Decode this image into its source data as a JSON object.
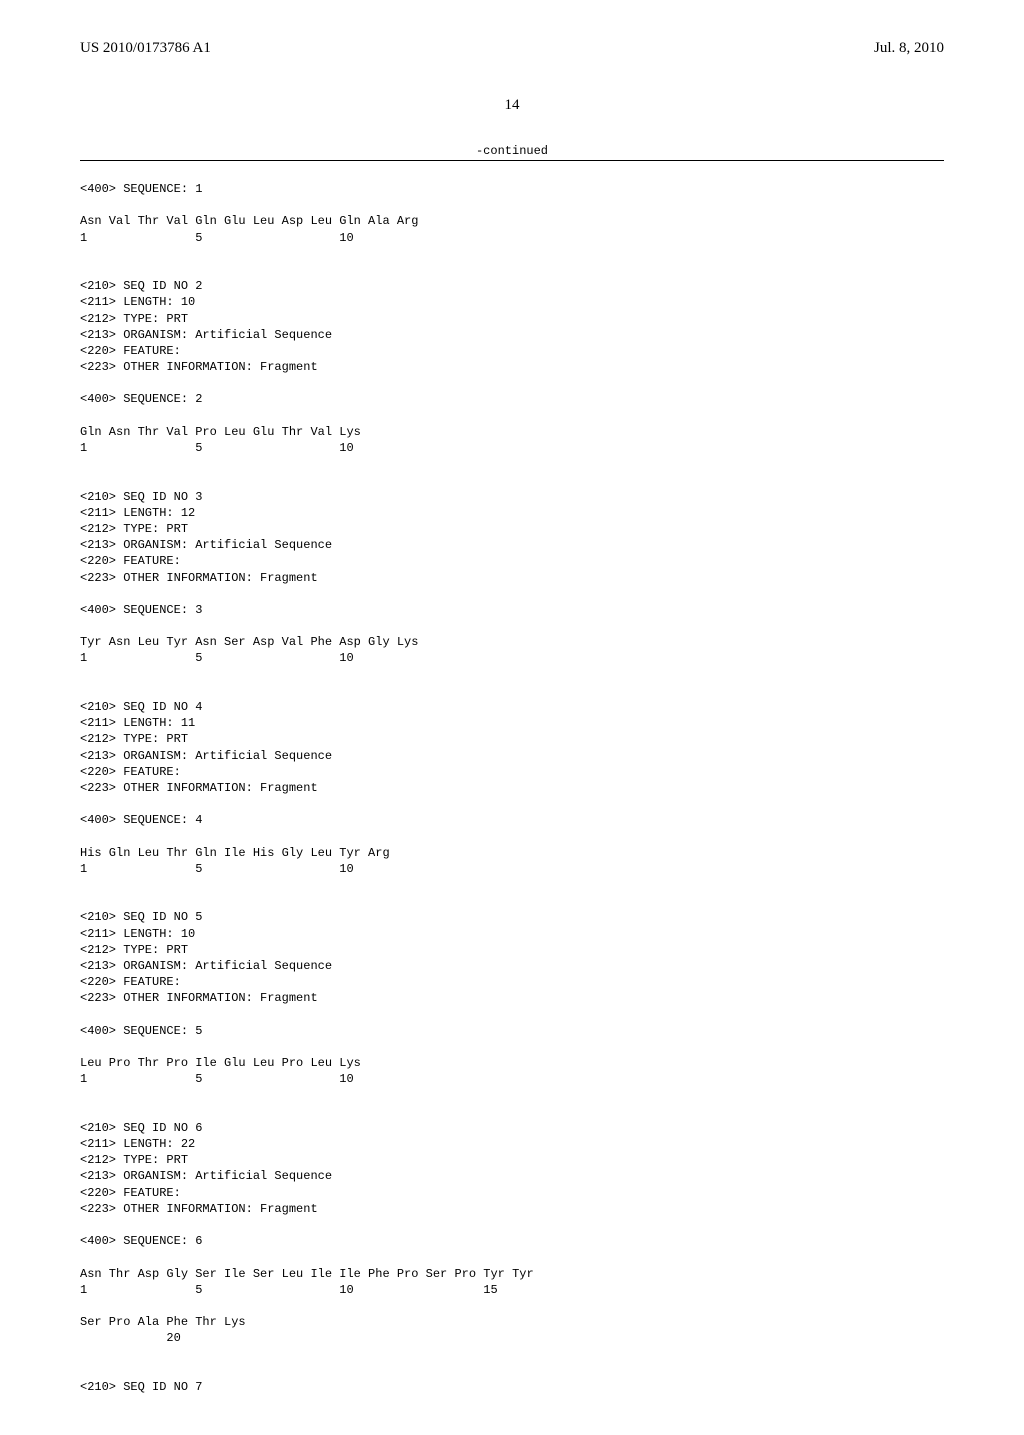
{
  "header": {
    "pub_number": "US 2010/0173786 A1",
    "pub_date": "Jul. 8, 2010"
  },
  "page_number": "14",
  "continued_label": "-continued",
  "sequences": [
    {
      "pre_lines": [
        "<400> SEQUENCE: 1"
      ],
      "seq_line": "Asn Val Thr Val Gln Glu Leu Asp Leu Gln Ala Arg",
      "pos_line": "1               5                   10"
    },
    {
      "pre_lines": [
        "<210> SEQ ID NO 2",
        "<211> LENGTH: 10",
        "<212> TYPE: PRT",
        "<213> ORGANISM: Artificial Sequence",
        "<220> FEATURE:",
        "<223> OTHER INFORMATION: Fragment",
        "",
        "<400> SEQUENCE: 2"
      ],
      "seq_line": "Gln Asn Thr Val Pro Leu Glu Thr Val Lys",
      "pos_line": "1               5                   10"
    },
    {
      "pre_lines": [
        "<210> SEQ ID NO 3",
        "<211> LENGTH: 12",
        "<212> TYPE: PRT",
        "<213> ORGANISM: Artificial Sequence",
        "<220> FEATURE:",
        "<223> OTHER INFORMATION: Fragment",
        "",
        "<400> SEQUENCE: 3"
      ],
      "seq_line": "Tyr Asn Leu Tyr Asn Ser Asp Val Phe Asp Gly Lys",
      "pos_line": "1               5                   10"
    },
    {
      "pre_lines": [
        "<210> SEQ ID NO 4",
        "<211> LENGTH: 11",
        "<212> TYPE: PRT",
        "<213> ORGANISM: Artificial Sequence",
        "<220> FEATURE:",
        "<223> OTHER INFORMATION: Fragment",
        "",
        "<400> SEQUENCE: 4"
      ],
      "seq_line": "His Gln Leu Thr Gln Ile His Gly Leu Tyr Arg",
      "pos_line": "1               5                   10"
    },
    {
      "pre_lines": [
        "<210> SEQ ID NO 5",
        "<211> LENGTH: 10",
        "<212> TYPE: PRT",
        "<213> ORGANISM: Artificial Sequence",
        "<220> FEATURE:",
        "<223> OTHER INFORMATION: Fragment",
        "",
        "<400> SEQUENCE: 5"
      ],
      "seq_line": "Leu Pro Thr Pro Ile Glu Leu Pro Leu Lys",
      "pos_line": "1               5                   10"
    },
    {
      "pre_lines": [
        "<210> SEQ ID NO 6",
        "<211> LENGTH: 22",
        "<212> TYPE: PRT",
        "<213> ORGANISM: Artificial Sequence",
        "<220> FEATURE:",
        "<223> OTHER INFORMATION: Fragment",
        "",
        "<400> SEQUENCE: 6"
      ],
      "seq_line": "Asn Thr Asp Gly Ser Ile Ser Leu Ile Ile Phe Pro Ser Pro Tyr Tyr",
      "pos_line": "1               5                   10                  15",
      "seq_line2": "Ser Pro Ala Phe Thr Lys",
      "pos_line2": "            20"
    },
    {
      "pre_lines": [
        "<210> SEQ ID NO 7"
      ]
    }
  ]
}
